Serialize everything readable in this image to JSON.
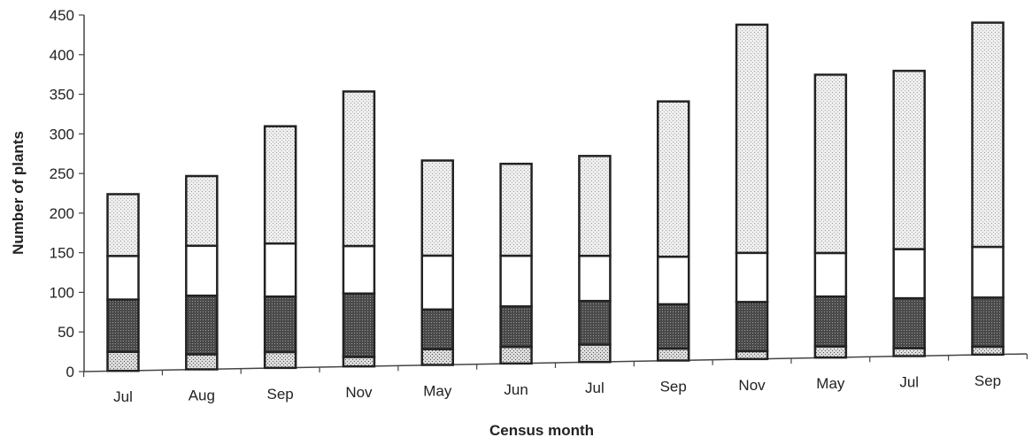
{
  "chart_data": {
    "type": "bar",
    "stacked": true,
    "xlabel": "Census month",
    "ylabel": "Number of plants",
    "ylim": [
      0,
      450
    ],
    "yticks": [
      0,
      50,
      100,
      150,
      200,
      250,
      300,
      350,
      400,
      450
    ],
    "grid": false,
    "legend": "none",
    "categories": [
      "Jul",
      "Aug",
      "Sep",
      "Nov",
      "May",
      "Jun",
      "Jul",
      "Sep",
      "Nov",
      "May",
      "Jul",
      "Sep"
    ],
    "series": [
      {
        "values": [
          24,
          19,
          20,
          12,
          20,
          21,
          22,
          15,
          10,
          14,
          10,
          10
        ],
        "color": "#d4d4d4",
        "pattern": "dense-stipple"
      },
      {
        "values": [
          66,
          74,
          70,
          80,
          50,
          51,
          55,
          56,
          62,
          63,
          63,
          62
        ],
        "color": "#5a5a5a",
        "pattern": "dark-stipple"
      },
      {
        "values": [
          55,
          63,
          67,
          60,
          68,
          64,
          57,
          60,
          62,
          55,
          62,
          64
        ],
        "color": "#ffffff",
        "pattern": "none"
      },
      {
        "values": [
          78,
          88,
          148,
          195,
          120,
          116,
          126,
          196,
          288,
          225,
          225,
          283
        ],
        "color": "#e8e8e8",
        "pattern": "light-stipple"
      }
    ]
  }
}
